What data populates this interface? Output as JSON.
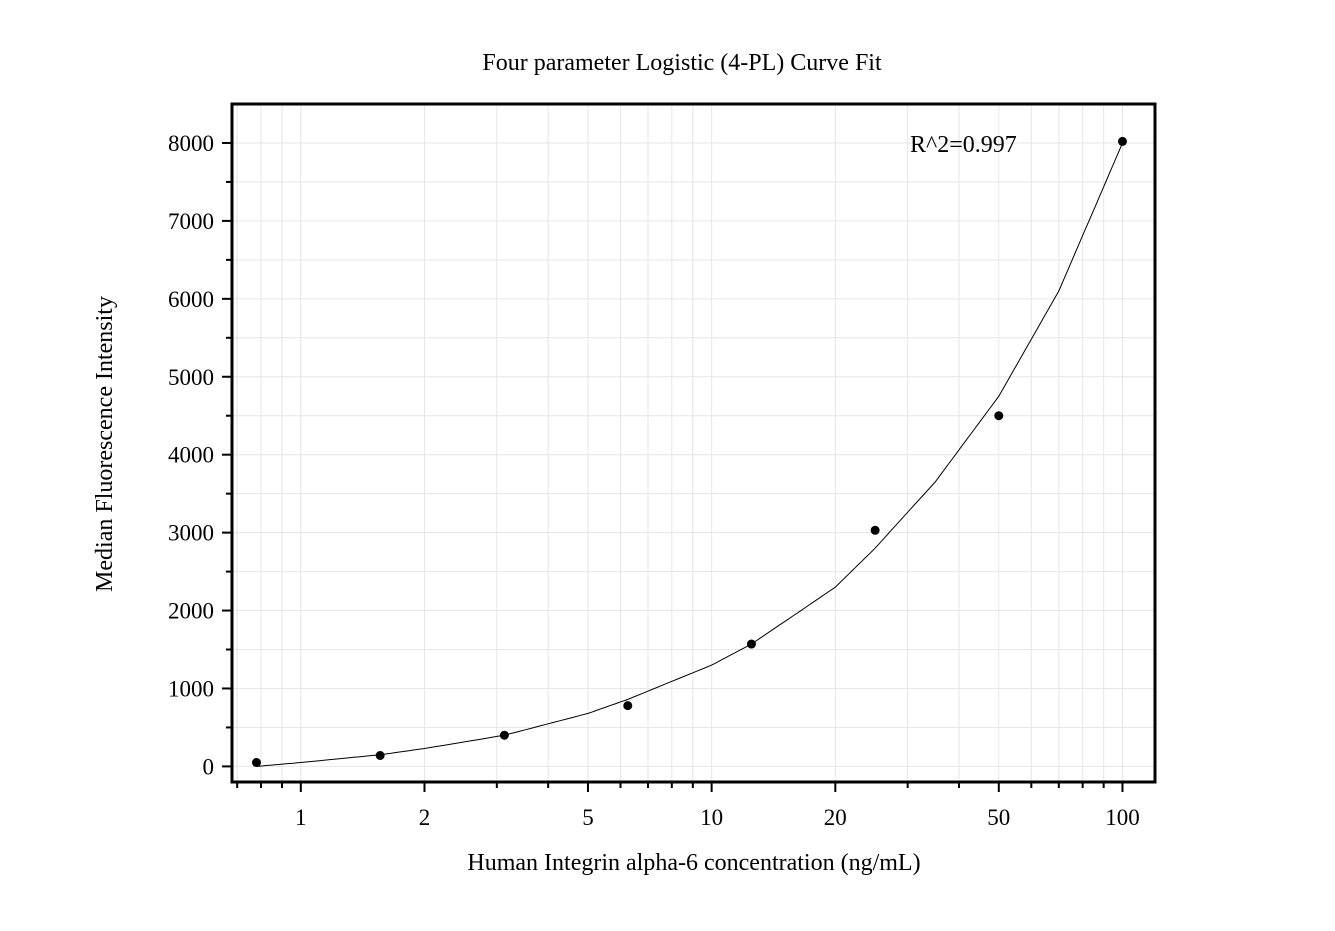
{
  "chart_data": {
    "type": "scatter",
    "title": "Four parameter Logistic (4-PL) Curve Fit",
    "xlabel": "Human Integrin alpha-6 concentration (ng/mL)",
    "ylabel": "Median Fluorescence Intensity",
    "annotation": "R^2=0.997",
    "x_scale": "log",
    "xlim": [
      0.68,
      120
    ],
    "ylim": [
      -200,
      8500
    ],
    "x_ticks": [
      {
        "value": 1,
        "label": "1"
      },
      {
        "value": 2,
        "label": "2"
      },
      {
        "value": 5,
        "label": "5"
      },
      {
        "value": 10,
        "label": "10"
      },
      {
        "value": 20,
        "label": "20"
      },
      {
        "value": 50,
        "label": "50"
      },
      {
        "value": 100,
        "label": "100"
      }
    ],
    "y_ticks": [
      {
        "value": 0,
        "label": "0"
      },
      {
        "value": 1000,
        "label": "1000"
      },
      {
        "value": 2000,
        "label": "2000"
      },
      {
        "value": 3000,
        "label": "3000"
      },
      {
        "value": 4000,
        "label": "4000"
      },
      {
        "value": 5000,
        "label": "5000"
      },
      {
        "value": 6000,
        "label": "6000"
      },
      {
        "value": 7000,
        "label": "7000"
      },
      {
        "value": 8000,
        "label": "8000"
      }
    ],
    "grid": true,
    "points": [
      {
        "x": 0.78,
        "y": 50
      },
      {
        "x": 1.56,
        "y": 140
      },
      {
        "x": 3.13,
        "y": 400
      },
      {
        "x": 6.25,
        "y": 780
      },
      {
        "x": 12.5,
        "y": 1570
      },
      {
        "x": 25,
        "y": 3030
      },
      {
        "x": 50,
        "y": 4500
      },
      {
        "x": 100,
        "y": 8020
      }
    ],
    "fit_curve": [
      {
        "x": 0.78,
        "y": 0
      },
      {
        "x": 1,
        "y": 50
      },
      {
        "x": 1.56,
        "y": 150
      },
      {
        "x": 2,
        "y": 230
      },
      {
        "x": 3.13,
        "y": 400
      },
      {
        "x": 5,
        "y": 680
      },
      {
        "x": 6.25,
        "y": 860
      },
      {
        "x": 10,
        "y": 1300
      },
      {
        "x": 12.5,
        "y": 1570
      },
      {
        "x": 20,
        "y": 2300
      },
      {
        "x": 25,
        "y": 2800
      },
      {
        "x": 35,
        "y": 3650
      },
      {
        "x": 50,
        "y": 4750
      },
      {
        "x": 70,
        "y": 6100
      },
      {
        "x": 100,
        "y": 8000
      }
    ]
  }
}
